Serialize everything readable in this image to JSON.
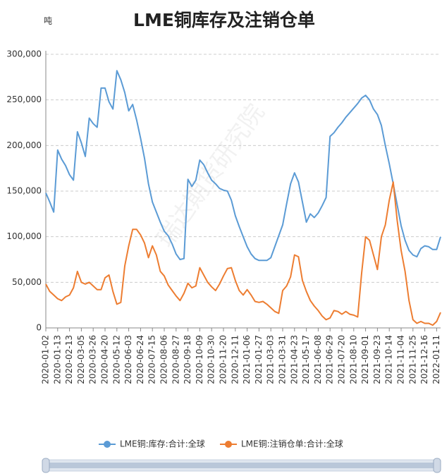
{
  "chart_data": {
    "type": "line",
    "title": "LME铜库存及注销仓单",
    "y_unit": "吨",
    "watermark": "瑞达期货研究院",
    "categories": [
      "2020-01-02",
      null,
      null,
      "2020-01-13",
      null,
      null,
      "2020-02-13",
      null,
      null,
      "2020-03-05",
      null,
      null,
      "2020-03-26",
      null,
      null,
      "2020-04-20",
      null,
      null,
      "2020-05-12",
      null,
      null,
      "2020-06-03",
      null,
      null,
      "2020-06-24",
      null,
      null,
      "2020-07-15",
      null,
      null,
      "2020-08-06",
      null,
      null,
      "2020-08-27",
      null,
      null,
      "2020-09-18",
      null,
      null,
      "2020-10-09",
      null,
      null,
      "2020-10-30",
      null,
      null,
      "2020-11-20",
      null,
      null,
      "2020-12-11",
      null,
      null,
      "2021-01-06",
      null,
      null,
      "2021-01-27",
      null,
      null,
      "2021-03-03",
      null,
      null,
      "2021-03-31",
      null,
      null,
      "2021-04-23",
      null,
      null,
      "2021-05-17",
      null,
      null,
      "2021-06-08",
      null,
      null,
      "2021-06-29",
      null,
      null,
      "2021-07-20",
      null,
      null,
      "2021-08-10",
      null,
      null,
      "2021-09-01",
      null,
      null,
      "2021-09-23",
      null,
      null,
      "2021-10-14",
      null,
      null,
      "2021-11-04",
      null,
      null,
      "2021-11-25",
      null,
      null,
      "2021-12-16",
      null,
      null,
      "2022-01-11",
      null
    ],
    "series": [
      {
        "name": "LME铜:库存:合计:全球",
        "color": "#5b9bd5",
        "values": [
          148000,
          138000,
          127000,
          195000,
          185000,
          178000,
          168000,
          162000,
          215000,
          203000,
          188000,
          230000,
          224000,
          220000,
          263000,
          263000,
          248000,
          240000,
          282000,
          272000,
          258000,
          238000,
          245000,
          228000,
          208000,
          186000,
          158000,
          138000,
          127000,
          116000,
          106000,
          101000,
          92000,
          81000,
          75000,
          76000,
          163000,
          155000,
          162000,
          184000,
          179000,
          170000,
          162000,
          158000,
          153000,
          151000,
          150000,
          140000,
          123000,
          111000,
          100000,
          89000,
          81000,
          76000,
          74000,
          74000,
          74000,
          77000,
          89000,
          101000,
          113000,
          136000,
          158000,
          170000,
          160000,
          138000,
          116000,
          125000,
          121000,
          126000,
          134000,
          143000,
          210000,
          214000,
          220000,
          225000,
          231000,
          236000,
          241000,
          246000,
          252000,
          255000,
          250000,
          240000,
          234000,
          222000,
          200000,
          180000,
          158000,
          135000,
          112000,
          96000,
          85000,
          80000,
          78000,
          87000,
          90000,
          89000,
          86000,
          86000,
          100000
        ]
      },
      {
        "name": "LME铜:注销仓单:合计:全球",
        "color": "#ed7d31",
        "values": [
          48000,
          40000,
          36000,
          32000,
          30000,
          34000,
          36000,
          44000,
          62000,
          50000,
          48000,
          50000,
          46000,
          42000,
          42000,
          55000,
          58000,
          40000,
          26000,
          28000,
          68000,
          90000,
          108000,
          108000,
          102000,
          93000,
          77000,
          90000,
          80000,
          62000,
          57000,
          47000,
          41000,
          35000,
          30000,
          38000,
          49000,
          44000,
          46000,
          66000,
          58000,
          50000,
          45000,
          41000,
          48000,
          57000,
          65000,
          66000,
          52000,
          41000,
          36000,
          42000,
          36000,
          29000,
          28000,
          29000,
          26000,
          22000,
          18000,
          16000,
          41000,
          46000,
          56000,
          80000,
          78000,
          52000,
          40000,
          30000,
          24000,
          19000,
          13000,
          9000,
          11000,
          19000,
          18000,
          15000,
          18000,
          15000,
          14000,
          12000,
          60000,
          100000,
          96000,
          80000,
          64000,
          100000,
          113000,
          140000,
          160000,
          118000,
          85000,
          62000,
          30000,
          9000,
          5000,
          7000,
          5000,
          5000,
          3000,
          7000,
          17000
        ]
      }
    ],
    "ylim": [
      0,
      300000
    ],
    "yticks": [
      0,
      {
        "value": 50000,
        "label": "50,000"
      },
      {
        "value": 100000,
        "label": "100,000"
      },
      {
        "value": 150000,
        "label": "150,000"
      },
      {
        "value": 200000,
        "label": "200,000"
      },
      {
        "value": 250000,
        "label": "250,000"
      },
      {
        "value": 300000,
        "label": "300,000"
      }
    ],
    "grid": true,
    "legend": "bottom"
  }
}
